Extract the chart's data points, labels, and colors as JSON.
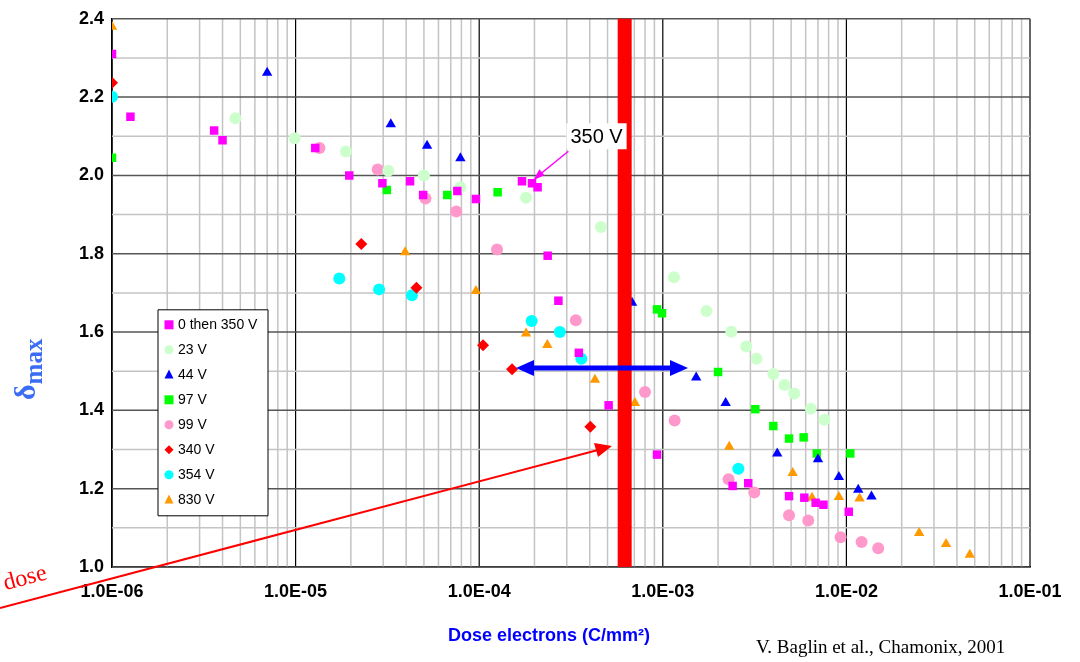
{
  "chart_data": {
    "type": "scatter",
    "xlabel": "Dose electrons (C/mm²)",
    "ylabel": "δ$_{max}$",
    "log": "x",
    "grid": true,
    "legend": "left",
    "xlim": [
      1e-06,
      0.1
    ],
    "ylim": [
      1.0,
      2.4
    ],
    "xticks": [
      {
        "value": 1e-06,
        "label": "1.0E-06"
      },
      {
        "value": 1e-05,
        "label": "1.0E-05"
      },
      {
        "value": 0.0001,
        "label": "1.0E-04"
      },
      {
        "value": 0.001,
        "label": "1.0E-03"
      },
      {
        "value": 0.01,
        "label": "1.0E-02"
      },
      {
        "value": 0.1,
        "label": "1.0E-01"
      }
    ],
    "yticks": [
      {
        "value": 1.0,
        "label": "1.0"
      },
      {
        "value": 1.2,
        "label": "1.2"
      },
      {
        "value": 1.4,
        "label": "1.4"
      },
      {
        "value": 1.6,
        "label": "1.6"
      },
      {
        "value": 1.8,
        "label": "1.8"
      },
      {
        "value": 2.0,
        "label": "2.0"
      },
      {
        "value": 2.2,
        "label": "2.2"
      },
      {
        "value": 2.4,
        "label": "2.4"
      }
    ],
    "series": [
      {
        "name": "0 then 350 V",
        "color": "#ff00ff",
        "marker": "square",
        "x": [
          1e-06,
          1.26e-06,
          3.6e-06,
          4e-06,
          1.28e-05,
          1.96e-05,
          2.97e-05,
          4.2e-05,
          4.95e-05,
          7.6e-05,
          9.6e-05,
          0.000171,
          0.000194,
          0.000208,
          0.000236,
          0.00027,
          0.000349,
          0.000507,
          0.00093,
          0.0024,
          0.00292,
          0.00487,
          0.0059,
          0.0068,
          0.0075,
          0.0103
        ],
        "values": [
          2.31,
          2.15,
          2.115,
          2.09,
          2.07,
          2.0,
          1.98,
          1.985,
          1.95,
          1.96,
          1.94,
          1.985,
          1.98,
          1.97,
          1.795,
          1.68,
          1.547,
          1.413,
          1.287,
          1.207,
          1.214,
          1.181,
          1.177,
          1.164,
          1.159,
          1.141
        ]
      },
      {
        "name": "23 V",
        "color": "#ccffcc",
        "marker": "circle",
        "x": [
          4.7e-06,
          9.9e-06,
          1.88e-05,
          3.2e-05,
          5e-05,
          7.9e-05,
          0.00018,
          0.00046,
          0.00068,
          0.00115,
          0.00173,
          0.00236,
          0.00285,
          0.00324,
          0.004,
          0.0046,
          0.0052,
          0.0064,
          0.0076
        ],
        "values": [
          2.146,
          2.095,
          2.061,
          2.012,
          2.0,
          1.97,
          1.943,
          1.868,
          null,
          1.74,
          1.654,
          1.601,
          1.563,
          1.532,
          1.493,
          1.465,
          1.443,
          1.404,
          1.376
        ]
      },
      {
        "name": "44 V",
        "color": "#0000ff",
        "marker": "triangle",
        "x": [
          7e-06,
          3.3e-05,
          5.2e-05,
          7.9e-05,
          0.00068,
          0.00152,
          0.0022,
          0.0042,
          0.007,
          0.0091,
          0.0116,
          0.0137
        ],
        "values": [
          2.262,
          2.131,
          2.076,
          2.044,
          1.675,
          1.484,
          1.419,
          1.29,
          1.275,
          1.23,
          1.197,
          1.18
        ]
      },
      {
        "name": "97 V",
        "color": "#00ff00",
        "marker": "square",
        "x": [
          1e-06,
          3.14e-05,
          6.7e-05,
          0.000126,
          0.00093,
          0.00099,
          0.002,
          0.00319,
          0.004,
          0.00487,
          0.00585,
          0.0069,
          0.0105
        ],
        "values": [
          2.045,
          1.963,
          1.95,
          1.957,
          1.658,
          1.648,
          1.498,
          1.403,
          1.36,
          1.328,
          1.331,
          1.29,
          1.29
        ]
      },
      {
        "name": "99 V",
        "color": "#ff99cc",
        "marker": "circle",
        "x": [
          1.35e-05,
          2.8e-05,
          5.1e-05,
          7.5e-05,
          0.000125,
          0.000336,
          0.0008,
          0.00116,
          0.00228,
          0.00315,
          0.00487,
          0.0062,
          0.0093,
          0.0121,
          0.0149
        ],
        "values": [
          2.07,
          2.015,
          1.941,
          1.908,
          1.811,
          1.63,
          1.447,
          1.374,
          1.224,
          1.19,
          1.132,
          1.119,
          1.076,
          1.064,
          1.048
        ]
      },
      {
        "name": "340 V",
        "color": "#ff0000",
        "marker": "diamond",
        "x": [
          1e-06,
          2.28e-05,
          4.55e-05,
          0.000105,
          0.000151,
          0.000403
        ],
        "values": [
          2.237,
          1.825,
          1.713,
          1.566,
          1.505,
          1.358
        ]
      },
      {
        "name": "354 V",
        "color": "#00ffff",
        "marker": "circle",
        "x": [
          1e-06,
          1.73e-05,
          2.85e-05,
          4.3e-05,
          0.000193,
          0.000275,
          0.00036,
          0.00258
        ],
        "values": [
          2.201,
          1.737,
          1.709,
          1.694,
          1.628,
          1.6,
          1.532,
          1.251
        ]
      },
      {
        "name": "830 V",
        "color": "#ff9900",
        "marker": "triangle",
        "x": [
          1e-06,
          3.95e-05,
          9.6e-05,
          0.00018,
          0.000235,
          0.000427,
          0.000705,
          0.0023,
          0.0051,
          0.0065,
          0.0091,
          0.0118,
          0.0249,
          0.0349,
          0.047
        ],
        "values": [
          2.38,
          1.804,
          1.705,
          1.596,
          1.567,
          1.478,
          1.419,
          1.307,
          1.24,
          1.177,
          1.179,
          1.175,
          1.087,
          1.059,
          1.031
        ]
      }
    ],
    "ref_lines": [
      {
        "axis": "x",
        "value": 0.00062,
        "color": "#ff0000"
      }
    ],
    "annotations": [
      {
        "text": "350 V",
        "x": 0.00019,
        "y": 1.98
      },
      "dose",
      "V. Baglin et al., Chamonix, 2001"
    ]
  }
}
